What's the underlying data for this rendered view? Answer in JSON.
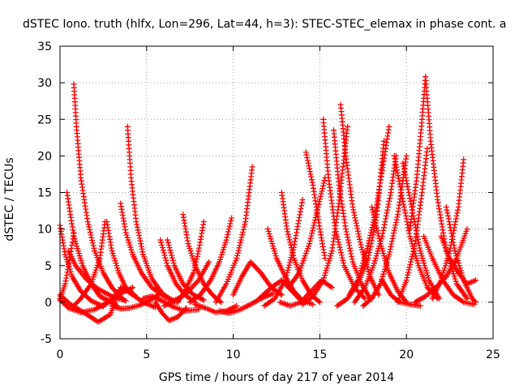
{
  "chart_data": {
    "type": "scatter",
    "title": "dSTEC Iono. truth (hlfx, Lon=296, Lat=44, h=3): STEC-STEC_elemax in phase cont. a",
    "xlabel": "GPS time / hours of day 217 of year 2014",
    "ylabel": "dSTEC  / TECUs",
    "xlim": [
      0,
      25
    ],
    "ylim": [
      -5,
      35
    ],
    "xticks": [
      0,
      5,
      10,
      15,
      20,
      25
    ],
    "yticks": [
      -5,
      0,
      5,
      10,
      15,
      20,
      25,
      30,
      35
    ],
    "grid": true,
    "marker": "+",
    "color": "#ff0000",
    "series": [
      {
        "x": [
          0.0,
          0.3,
          0.7,
          1.2,
          1.8,
          2.5
        ],
        "y": [
          10.5,
          6.5,
          3.5,
          1.5,
          0.2,
          -0.6
        ]
      },
      {
        "x": [
          0.0,
          0.6,
          1.5,
          2.2,
          2.9,
          3.5
        ],
        "y": [
          1.0,
          -0.3,
          -1.6,
          -2.7,
          -1.7,
          2.0
        ]
      },
      {
        "x": [
          0.0,
          0.5,
          1.2,
          2.0,
          2.8,
          3.5,
          4.2
        ],
        "y": [
          0.3,
          -0.8,
          -1.4,
          -1.0,
          0.0,
          1.2,
          2.0
        ]
      },
      {
        "x": [
          0.4,
          0.8,
          1.3,
          1.8,
          2.3,
          2.8,
          3.3
        ],
        "y": [
          15.0,
          9.0,
          5.0,
          2.5,
          0.8,
          0.2,
          -0.5
        ]
      },
      {
        "x": [
          0.0,
          0.3,
          0.6,
          0.8
        ],
        "y": [
          0.5,
          2.5,
          6.5,
          9.5
        ]
      },
      {
        "x": [
          0.5,
          0.9,
          1.5,
          2.2,
          3.0,
          3.8
        ],
        "y": [
          7.0,
          5.0,
          3.2,
          1.8,
          0.8,
          0.2
        ]
      },
      {
        "x": [
          0.8,
          0.95,
          1.2,
          1.6,
          2.0,
          2.5,
          3.0,
          3.6
        ],
        "y": [
          29.8,
          24.0,
          17.0,
          11.0,
          7.0,
          4.0,
          2.0,
          0.5
        ]
      },
      {
        "x": [
          0.8,
          1.2,
          1.8,
          2.3,
          2.6
        ],
        "y": [
          -0.5,
          0.5,
          2.5,
          6.0,
          11.0
        ]
      },
      {
        "x": [
          2.7,
          3.0,
          3.4,
          3.8,
          4.3
        ],
        "y": [
          11.0,
          7.0,
          4.0,
          2.0,
          1.0
        ]
      },
      {
        "x": [
          2.5,
          3.0,
          3.6,
          4.2,
          4.8,
          5.5
        ],
        "y": [
          -0.5,
          0.5,
          2.0,
          1.0,
          0.0,
          -0.7
        ]
      },
      {
        "x": [
          3.5,
          3.8,
          4.2,
          4.7,
          5.3,
          6.0,
          6.8
        ],
        "y": [
          13.5,
          9.5,
          6.5,
          4.0,
          2.0,
          0.8,
          0.0
        ]
      },
      {
        "x": [
          3.9,
          4.1,
          4.4,
          4.8,
          5.3,
          5.9,
          6.6
        ],
        "y": [
          24.0,
          17.0,
          11.0,
          6.5,
          3.2,
          1.2,
          0.0
        ]
      },
      {
        "x": [
          3.0,
          3.5,
          4.0,
          4.6,
          5.2,
          5.8
        ],
        "y": [
          -0.5,
          -0.9,
          -0.8,
          -0.4,
          0.3,
          1.2
        ]
      },
      {
        "x": [
          4.8,
          5.3,
          5.9,
          6.5,
          7.2,
          8.0
        ],
        "y": [
          0.5,
          0.8,
          0.2,
          -0.6,
          -1.2,
          -1.0
        ]
      },
      {
        "x": [
          5.5,
          5.9,
          6.3,
          6.8,
          7.3
        ],
        "y": [
          0.0,
          -1.5,
          -2.5,
          -2.0,
          -0.8
        ]
      },
      {
        "x": [
          5.8,
          6.2,
          6.7,
          7.2,
          7.8
        ],
        "y": [
          8.5,
          5.0,
          2.5,
          1.0,
          0.0
        ]
      },
      {
        "x": [
          6.2,
          6.6,
          7.1,
          7.7,
          8.3
        ],
        "y": [
          8.5,
          5.0,
          2.5,
          1.0,
          0.3
        ]
      },
      {
        "x": [
          6.0,
          6.6,
          7.3,
          8.0,
          8.6
        ],
        "y": [
          -0.5,
          0.2,
          1.2,
          3.0,
          5.5
        ]
      },
      {
        "x": [
          7.1,
          7.4,
          7.8,
          8.3,
          8.8,
          9.3
        ],
        "y": [
          12.0,
          8.0,
          5.0,
          2.5,
          1.0,
          0.0
        ]
      },
      {
        "x": [
          6.8,
          7.2,
          7.7,
          8.0,
          8.3
        ],
        "y": [
          0.0,
          1.5,
          4.0,
          7.0,
          11.0
        ]
      },
      {
        "x": [
          7.5,
          8.1,
          8.7,
          9.2,
          9.6,
          9.9
        ],
        "y": [
          0.0,
          1.0,
          3.0,
          5.5,
          8.5,
          11.5
        ]
      },
      {
        "x": [
          7.8,
          8.4,
          9.0,
          9.6,
          10.2
        ],
        "y": [
          -0.3,
          -0.8,
          -1.4,
          -1.2,
          -0.5
        ]
      },
      {
        "x": [
          9.2,
          9.8,
          10.4,
          11.0,
          11.6,
          12.3
        ],
        "y": [
          -1.2,
          -1.5,
          -1.0,
          -0.3,
          0.5,
          1.2
        ]
      },
      {
        "x": [
          9.0,
          9.6,
          10.2,
          10.7,
          11.1
        ],
        "y": [
          0.0,
          2.5,
          6.0,
          11.0,
          18.5
        ]
      },
      {
        "x": [
          10.0,
          10.5,
          11.0,
          11.6,
          12.2,
          12.8
        ],
        "y": [
          1.0,
          3.5,
          5.5,
          4.0,
          2.0,
          1.0
        ]
      },
      {
        "x": [
          11.5,
          12.2,
          12.8,
          13.4,
          14.0
        ],
        "y": [
          0.5,
          2.0,
          3.0,
          1.5,
          0.0
        ]
      },
      {
        "x": [
          11.8,
          12.4,
          13.0,
          13.5,
          14.0
        ],
        "y": [
          -0.5,
          0.5,
          3.0,
          7.5,
          14.0
        ]
      },
      {
        "x": [
          12.0,
          12.5,
          13.0,
          13.5,
          14.0,
          14.6
        ],
        "y": [
          10.0,
          6.0,
          3.5,
          1.5,
          0.2,
          -0.3
        ]
      },
      {
        "x": [
          12.7,
          13.3,
          13.9,
          14.5,
          15.1,
          15.7
        ],
        "y": [
          0.0,
          -0.5,
          0.0,
          1.5,
          3.0,
          2.0
        ]
      },
      {
        "x": [
          12.8,
          13.1,
          13.5,
          14.0,
          14.5,
          15.0
        ],
        "y": [
          15.0,
          10.0,
          6.0,
          3.0,
          1.0,
          0.0
        ]
      },
      {
        "x": [
          13.2,
          13.8,
          14.4,
          14.9,
          15.3
        ],
        "y": [
          2.0,
          4.0,
          8.0,
          13.0,
          17.0
        ]
      },
      {
        "x": [
          14.0,
          14.6,
          15.2,
          15.7,
          16.1,
          16.6
        ],
        "y": [
          -0.3,
          0.8,
          3.0,
          7.0,
          13.5,
          24.0
        ]
      },
      {
        "x": [
          14.2,
          14.6,
          15.0,
          15.3
        ],
        "y": [
          20.5,
          16.0,
          10.0,
          6.0
        ]
      },
      {
        "x": [
          15.2,
          15.5,
          15.9,
          16.4,
          17.0,
          17.6
        ],
        "y": [
          25.0,
          17.0,
          10.0,
          5.0,
          2.0,
          0.5
        ]
      },
      {
        "x": [
          15.8,
          16.1,
          16.5,
          16.9,
          17.4,
          17.9
        ],
        "y": [
          23.5,
          16.0,
          10.0,
          5.5,
          2.5,
          0.5
        ]
      },
      {
        "x": [
          16.2,
          16.5,
          16.9,
          17.4,
          17.9,
          18.4
        ],
        "y": [
          27.0,
          20.0,
          13.0,
          7.5,
          3.5,
          1.0
        ]
      },
      {
        "x": [
          16.0,
          16.6,
          17.2,
          17.8,
          18.3,
          18.7
        ],
        "y": [
          -0.5,
          0.5,
          2.5,
          6.0,
          12.0,
          22.0
        ]
      },
      {
        "x": [
          16.7,
          17.2,
          17.7,
          18.2,
          18.6,
          19.0
        ],
        "y": [
          1.0,
          3.0,
          7.0,
          12.0,
          18.0,
          24.0
        ]
      },
      {
        "x": [
          17.0,
          17.6,
          18.1,
          18.6,
          19.1,
          19.4
        ],
        "y": [
          0.0,
          2.0,
          5.0,
          9.0,
          15.0,
          20.0
        ]
      },
      {
        "x": [
          17.5,
          18.0,
          18.5,
          19.0,
          19.5,
          20.0
        ],
        "y": [
          -0.5,
          0.5,
          2.5,
          6.5,
          12.0,
          20.0
        ]
      },
      {
        "x": [
          18.0,
          18.5,
          19.0,
          19.5,
          20.0
        ],
        "y": [
          13.0,
          8.0,
          4.0,
          1.5,
          0.0
        ]
      },
      {
        "x": [
          18.6,
          19.1,
          19.6,
          20.2,
          20.8
        ],
        "y": [
          3.0,
          1.0,
          0.0,
          -0.3,
          -0.5
        ]
      },
      {
        "x": [
          19.3,
          19.7,
          20.2,
          20.7,
          21.2,
          21.8
        ],
        "y": [
          20.0,
          15.0,
          9.0,
          5.0,
          2.0,
          0.5
        ]
      },
      {
        "x": [
          19.8,
          20.3,
          20.8,
          21.3,
          21.9
        ],
        "y": [
          19.0,
          13.0,
          7.0,
          3.0,
          0.5
        ]
      },
      {
        "x": [
          19.5,
          20.0,
          20.5,
          20.9,
          21.2
        ],
        "y": [
          0.0,
          3.0,
          8.0,
          15.0,
          21.0
        ]
      },
      {
        "x": [
          20.2,
          20.6,
          20.9,
          21.1
        ],
        "y": [
          10.0,
          17.0,
          25.0,
          30.8
        ]
      },
      {
        "x": [
          21.1,
          21.4,
          21.8,
          22.3,
          22.9,
          23.5
        ],
        "y": [
          30.8,
          22.0,
          14.0,
          7.0,
          2.5,
          0.5
        ]
      },
      {
        "x": [
          21.0,
          21.5,
          22.1,
          22.7,
          23.3,
          23.9
        ],
        "y": [
          9.0,
          6.0,
          3.0,
          1.0,
          0.0,
          -0.3
        ]
      },
      {
        "x": [
          21.5,
          22.0,
          22.5,
          23.0,
          23.3
        ],
        "y": [
          0.5,
          3.0,
          7.0,
          13.0,
          19.5
        ]
      },
      {
        "x": [
          22.0,
          22.5,
          23.0,
          23.5,
          24.0
        ],
        "y": [
          9.0,
          6.0,
          4.0,
          2.5,
          3.0
        ]
      },
      {
        "x": [
          22.3,
          22.8,
          23.3,
          23.8,
          24.0
        ],
        "y": [
          13.0,
          7.0,
          3.0,
          0.5,
          0.0
        ]
      },
      {
        "x": [
          20.5,
          21.1,
          21.7,
          22.3,
          22.9,
          23.5
        ],
        "y": [
          0.0,
          0.8,
          2.0,
          3.5,
          6.0,
          10.0
        ]
      }
    ]
  }
}
